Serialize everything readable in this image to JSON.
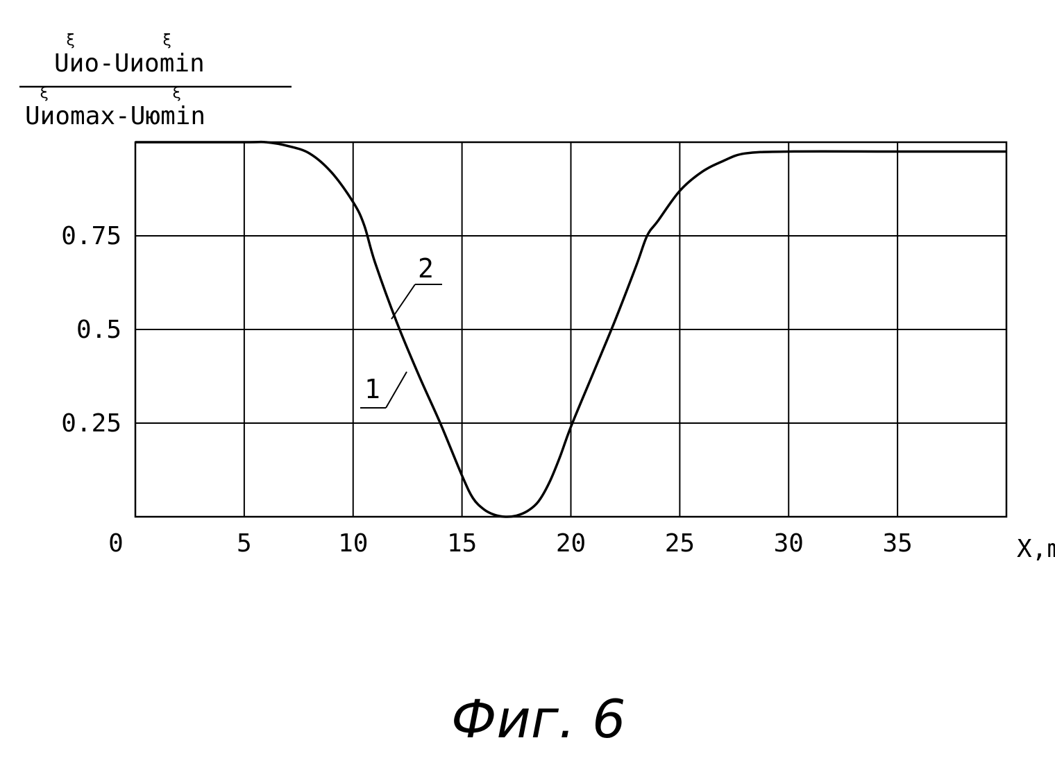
{
  "chart_data": {
    "type": "line",
    "ylabel_numerator": {
      "text": "Uио-Uиomin",
      "superscripts": [
        "ξ",
        "ξ"
      ]
    },
    "ylabel_denominator": {
      "text": "Uиomax-Uюmin",
      "superscripts": [
        "ξ",
        "ξ"
      ]
    },
    "xlabel": "X,mm",
    "x_ticks": [
      "0",
      "5",
      "10",
      "15",
      "20",
      "25",
      "30",
      "35"
    ],
    "y_ticks": [
      "0.25",
      "0.5",
      "0.75"
    ],
    "xlim": [
      0,
      40
    ],
    "ylim": [
      0,
      1
    ],
    "grid": true,
    "series": [
      {
        "name": "1",
        "x": [
          0,
          5,
          6,
          7,
          8,
          9,
          10,
          10.5,
          11,
          12,
          13,
          14,
          15,
          15.5,
          16,
          16.5,
          17,
          17.5,
          18,
          18.5,
          19,
          19.5,
          20,
          21,
          22,
          23,
          23.5,
          24,
          25,
          26,
          27,
          28,
          30,
          35,
          40
        ],
        "y": [
          1,
          1,
          1,
          0.99,
          0.97,
          0.92,
          0.84,
          0.78,
          0.68,
          0.52,
          0.38,
          0.25,
          0.11,
          0.05,
          0.02,
          0.005,
          0,
          0.003,
          0.015,
          0.04,
          0.09,
          0.16,
          0.24,
          0.38,
          0.52,
          0.67,
          0.75,
          0.79,
          0.87,
          0.92,
          0.95,
          0.97,
          0.975,
          0.975,
          0.975
        ]
      }
    ],
    "curve_labels": [
      "1",
      "2"
    ]
  },
  "caption": "Фиг. 6"
}
